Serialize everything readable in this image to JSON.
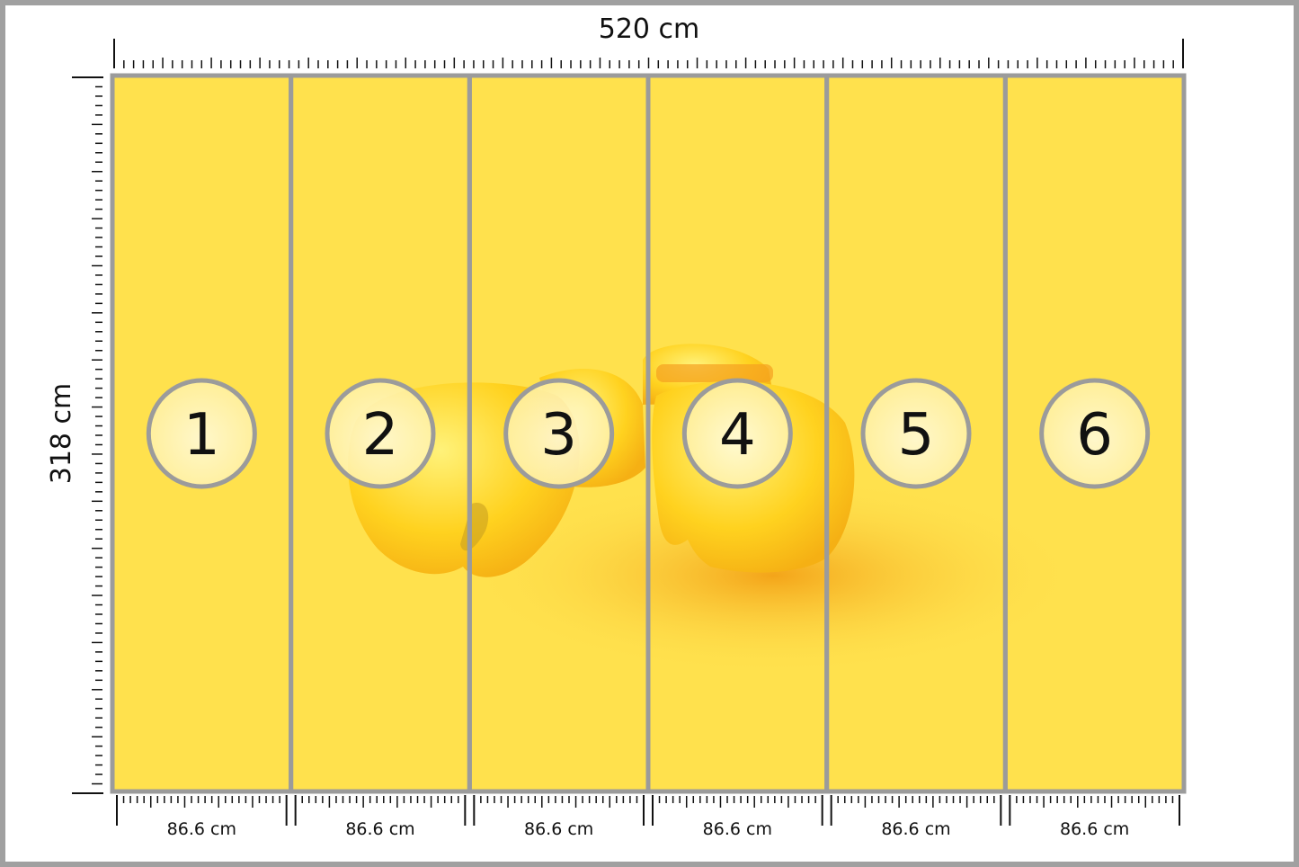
{
  "dimensions": {
    "width_label": "520 cm",
    "height_label": "318 cm"
  },
  "panels": [
    {
      "number": "1",
      "width_label": "86.6 cm"
    },
    {
      "number": "2",
      "width_label": "86.6 cm"
    },
    {
      "number": "3",
      "width_label": "86.6 cm"
    },
    {
      "number": "4",
      "width_label": "86.6 cm"
    },
    {
      "number": "5",
      "width_label": "86.6 cm"
    },
    {
      "number": "6",
      "width_label": "86.6 cm"
    }
  ],
  "image": {
    "subject": "yellow boxing gloves on yellow background"
  },
  "colors": {
    "background": "#ffe14d",
    "panel_border": "#9b9b9b",
    "circle_fill": "#fff3b0",
    "glove": "#ffd21f",
    "shadow": "#f5a623"
  }
}
